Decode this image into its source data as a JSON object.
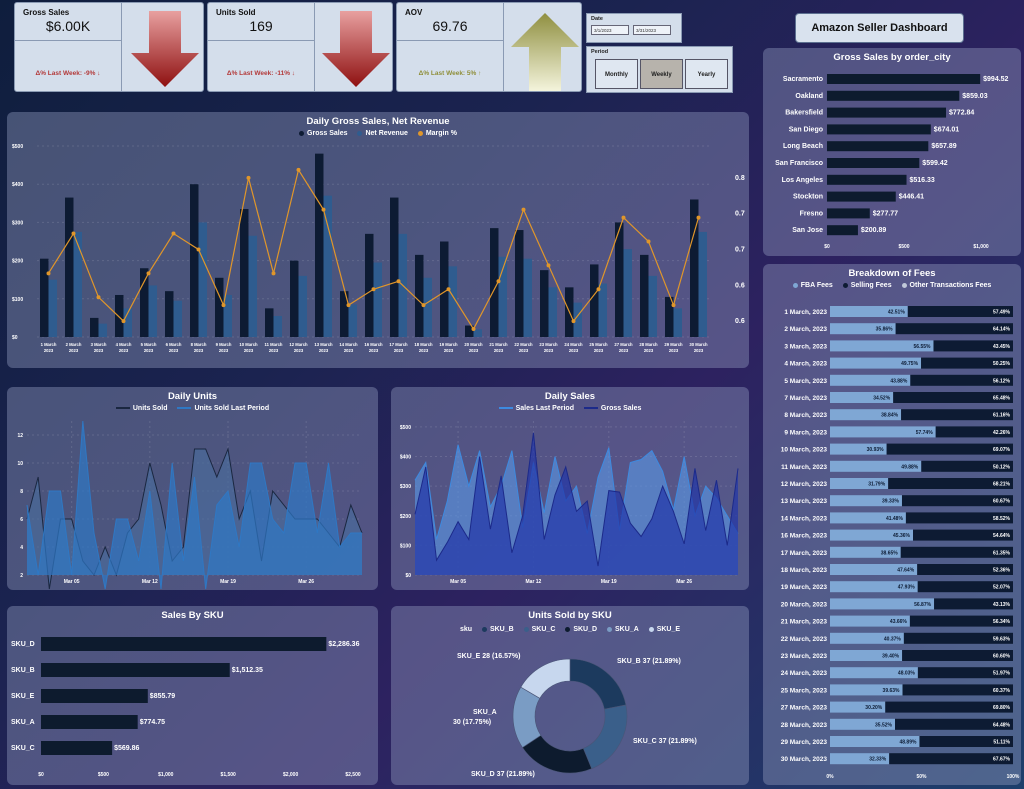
{
  "kpis": [
    {
      "title": "Gross Sales",
      "value": "$6.00K",
      "note": "Δ% Last Week: -9% ↓",
      "note_color": "#b33a3a",
      "trend": "down",
      "arrow_color": "#a11b1b"
    },
    {
      "title": "Units Sold",
      "value": "169",
      "note": "Δ% Last Week: -11% ↓",
      "note_color": "#b33a3a",
      "trend": "down",
      "arrow_color": "#a11b1b"
    },
    {
      "title": "AOV",
      "value": "69.76",
      "note": "Δ% Last Week: 5% ↑",
      "note_color": "#8f8f3a",
      "trend": "up",
      "arrow_color": "#9a9a4a"
    }
  ],
  "date_slicer": {
    "label": "Date",
    "start": "3/1/2023",
    "end": "3/31/2023"
  },
  "period_slicer": {
    "label": "Period",
    "options": [
      "Monthly",
      "Weekly",
      "Yearly"
    ],
    "selected": "Weekly"
  },
  "dashboard_title": "Amazon Seller Dashboard",
  "daily_chart": {
    "title": "Daily Gross Sales, Net Revenue",
    "legend": [
      "Gross Sales",
      "Net Revenue",
      "Margin %"
    ],
    "colors": {
      "gross": "#0d1b33",
      "net": "#2f5c8f",
      "margin": "#e0962a"
    },
    "y_left_ticks": [
      "$0",
      "$100",
      "$200",
      "$300",
      "$400",
      "$500"
    ],
    "y_right_ticks": [
      "0.6",
      "0.6",
      "0.7",
      "0.7",
      "0.8"
    ]
  },
  "daily_units": {
    "title": "Daily Units",
    "legend": [
      "Units Sold",
      "Units Sold Last Period"
    ],
    "y_ticks": [
      "2",
      "4",
      "6",
      "8",
      "10",
      "12"
    ],
    "x_ticks": [
      "Mar 05",
      "Mar 12",
      "Mar 19",
      "Mar 26"
    ]
  },
  "daily_sales": {
    "title": "Daily Sales",
    "legend": [
      "Sales Last Period",
      "Gross Sales"
    ],
    "y_ticks": [
      "$0",
      "$100",
      "$200",
      "$300",
      "$400",
      "$500"
    ],
    "x_ticks": [
      "Mar 05",
      "Mar 12",
      "Mar 19",
      "Mar 26"
    ]
  },
  "sales_by_sku": {
    "title": "Sales By SKU",
    "x_ticks": [
      "$0",
      "$500",
      "$1,000",
      "$1,500",
      "$2,000",
      "$2,500"
    ]
  },
  "units_by_sku": {
    "title": "Units Sold by SKU",
    "legend_title": "sku",
    "legend": [
      "SKU_B",
      "SKU_C",
      "SKU_D",
      "SKU_A",
      "SKU_E"
    ]
  },
  "gross_by_city": {
    "title": "Gross Sales by order_city",
    "x_ticks": [
      "$0",
      "$500",
      "$1,000"
    ]
  },
  "fees": {
    "title": "Breakdown of Fees",
    "legend": [
      "FBA Fees",
      "Selling Fees",
      "Other Transactions Fees"
    ],
    "x_ticks": [
      "0%",
      "50%",
      "100%"
    ],
    "colors": {
      "fba": "#7fa7d4",
      "selling": "#0d1b33"
    }
  },
  "chart_data": [
    {
      "type": "bar",
      "title": "Daily Gross Sales, Net Revenue",
      "categories": [
        "1 March, 2023",
        "2 March, 2023",
        "3 March, 2023",
        "4 March, 2023",
        "5 March, 2023",
        "6 March, 2023",
        "8 March, 2023",
        "9 March, 2023",
        "10 March, 2023",
        "11 March, 2023",
        "12 March, 2023",
        "13 March, 2023",
        "14 March, 2023",
        "16 March, 2023",
        "17 March, 2023",
        "18 March, 2023",
        "19 March, 2023",
        "20 March, 2023",
        "21 March, 2023",
        "22 March, 2023",
        "23 March, 2023",
        "24 March, 2023",
        "25 March, 2023",
        "27 March, 2023",
        "28 March, 2023",
        "29 March, 2023",
        "30 March, 2023"
      ],
      "series": [
        {
          "name": "Gross Sales",
          "values": [
            205,
            365,
            50,
            110,
            180,
            120,
            400,
            155,
            335,
            75,
            200,
            480,
            120,
            270,
            365,
            215,
            250,
            30,
            285,
            280,
            175,
            130,
            190,
            300,
            215,
            105,
            360
          ]
        },
        {
          "name": "Net Revenue",
          "values": [
            150,
            275,
            35,
            75,
            135,
            95,
            300,
            110,
            265,
            55,
            160,
            370,
            85,
            195,
            270,
            155,
            185,
            20,
            210,
            205,
            130,
            90,
            140,
            230,
            160,
            75,
            275
          ]
        },
        {
          "name": "Margin %",
          "values": [
            0.68,
            0.73,
            0.65,
            0.62,
            0.68,
            0.73,
            0.71,
            0.64,
            0.8,
            0.68,
            0.81,
            0.76,
            0.64,
            0.66,
            0.67,
            0.64,
            0.66,
            0.61,
            0.67,
            0.76,
            0.69,
            0.62,
            0.66,
            0.75,
            0.72,
            0.64,
            0.75
          ]
        }
      ],
      "ylim": [
        0,
        500
      ],
      "y2lim": [
        0.6,
        0.84
      ]
    },
    {
      "type": "area",
      "title": "Daily Units",
      "x": [
        "Mar 01",
        "Mar 02",
        "Mar 03",
        "Mar 04",
        "Mar 05",
        "Mar 06",
        "Mar 07",
        "Mar 08",
        "Mar 09",
        "Mar 10",
        "Mar 11",
        "Mar 12",
        "Mar 13",
        "Mar 14",
        "Mar 15",
        "Mar 16",
        "Mar 17",
        "Mar 18",
        "Mar 19",
        "Mar 20",
        "Mar 21",
        "Mar 22",
        "Mar 23",
        "Mar 24",
        "Mar 25",
        "Mar 26",
        "Mar 27",
        "Mar 28",
        "Mar 29",
        "Mar 30",
        "Mar 31"
      ],
      "series": [
        {
          "name": "Units Sold",
          "values": [
            6,
            9,
            1,
            6,
            6,
            3,
            2,
            4,
            2,
            5,
            6,
            10,
            7,
            3,
            4,
            11,
            11,
            9,
            11,
            6,
            8,
            3,
            8,
            7,
            6,
            6,
            6,
            5,
            4,
            7,
            5
          ]
        },
        {
          "name": "Units Sold Last Period",
          "values": [
            7,
            2,
            8,
            8,
            2,
            13,
            5,
            1,
            6,
            6,
            3,
            8,
            1,
            10,
            3,
            9,
            1,
            7,
            8,
            4,
            10,
            10,
            6,
            5,
            10,
            10,
            5,
            10,
            4,
            5,
            5
          ]
        }
      ],
      "ylim": [
        2,
        13
      ]
    },
    {
      "type": "area",
      "title": "Daily Sales",
      "x": [
        "Mar 01",
        "Mar 02",
        "Mar 03",
        "Mar 04",
        "Mar 05",
        "Mar 06",
        "Mar 07",
        "Mar 08",
        "Mar 09",
        "Mar 10",
        "Mar 11",
        "Mar 12",
        "Mar 13",
        "Mar 14",
        "Mar 15",
        "Mar 16",
        "Mar 17",
        "Mar 18",
        "Mar 19",
        "Mar 20",
        "Mar 21",
        "Mar 22",
        "Mar 23",
        "Mar 24",
        "Mar 25",
        "Mar 26",
        "Mar 27",
        "Mar 28",
        "Mar 29",
        "Mar 30",
        "Mar 31"
      ],
      "series": [
        {
          "name": "Sales Last Period",
          "values": [
            320,
            380,
            120,
            250,
            440,
            300,
            420,
            230,
            300,
            420,
            160,
            380,
            210,
            400,
            250,
            300,
            140,
            330,
            430,
            150,
            380,
            390,
            420,
            350,
            220,
            400,
            200,
            300,
            260,
            200,
            140
          ]
        },
        {
          "name": "Gross Sales",
          "values": [
            205,
            365,
            50,
            110,
            180,
            120,
            400,
            155,
            335,
            75,
            200,
            480,
            120,
            270,
            365,
            215,
            250,
            30,
            285,
            280,
            175,
            130,
            190,
            300,
            215,
            105,
            360,
            150,
            320,
            100,
            360
          ]
        }
      ],
      "ylim": [
        0,
        520
      ]
    },
    {
      "type": "bar",
      "title": "Sales By SKU",
      "categories": [
        "SKU_D",
        "SKU_B",
        "SKU_E",
        "SKU_A",
        "SKU_C"
      ],
      "values": [
        2286.36,
        1512.35,
        855.79,
        774.75,
        569.86
      ],
      "labels": [
        "$2,286.36",
        "$1,512.35",
        "$855.79",
        "$774.75",
        "$569.86"
      ],
      "xlim": [
        0,
        2500
      ]
    },
    {
      "type": "pie",
      "title": "Units Sold by SKU",
      "categories": [
        "SKU_B",
        "SKU_C",
        "SKU_D",
        "SKU_A",
        "SKU_E"
      ],
      "values": [
        37,
        37,
        37,
        30,
        28
      ],
      "labels": [
        "SKU_B 37 (21.89%)",
        "SKU_C 37 (21.89%)",
        "SKU_D 37 (21.89%)",
        "SKU_A 30 (17.75%)",
        "SKU_E 28 (16.57%)"
      ],
      "colors": [
        "#1c3a5e",
        "#3a5f8a",
        "#0d1b2e",
        "#7a9cc4",
        "#c7d7ee"
      ]
    },
    {
      "type": "bar",
      "title": "Gross Sales by order_city",
      "categories": [
        "Sacramento",
        "Oakland",
        "Bakersfield",
        "San Diego",
        "Long Beach",
        "San Francisco",
        "Los Angeles",
        "Stockton",
        "Fresno",
        "San Jose"
      ],
      "values": [
        994.52,
        859.03,
        772.84,
        674.01,
        657.89,
        599.42,
        516.33,
        446.41,
        277.77,
        200.89
      ],
      "labels": [
        "$994.52",
        "$859.03",
        "$772.84",
        "$674.01",
        "$657.89",
        "$599.42",
        "$516.33",
        "$446.41",
        "$277.77",
        "$200.89"
      ],
      "xlim": [
        0,
        1000
      ]
    },
    {
      "type": "bar",
      "title": "Breakdown of Fees",
      "categories": [
        "1 March, 2023",
        "2 March, 2023",
        "3 March, 2023",
        "4 March, 2023",
        "5 March, 2023",
        "7 March, 2023",
        "8 March, 2023",
        "9 March, 2023",
        "10 March, 2023",
        "11 March, 2023",
        "12 March, 2023",
        "13 March, 2023",
        "14 March, 2023",
        "16 March, 2023",
        "17 March, 2023",
        "18 March, 2023",
        "19 March, 2023",
        "20 March, 2023",
        "21 March, 2023",
        "22 March, 2023",
        "23 March, 2023",
        "24 March, 2023",
        "25 March, 2023",
        "27 March, 2023",
        "28 March, 2023",
        "29 March, 2023",
        "30 March, 2023"
      ],
      "series": [
        {
          "name": "FBA Fees",
          "values": [
            42.51,
            35.86,
            56.55,
            49.75,
            43.88,
            34.52,
            38.84,
            57.74,
            30.93,
            49.88,
            31.79,
            39.33,
            41.48,
            45.36,
            38.65,
            47.64,
            47.93,
            56.87,
            43.66,
            40.37,
            39.4,
            48.03,
            39.63,
            30.2,
            35.52,
            48.89,
            32.33
          ],
          "labels": [
            "42.51%",
            "35.86%",
            "56.55%",
            "49.75%",
            "43.88%",
            "34.52%",
            "38.84%",
            "57.74%",
            "30.93%",
            "49.88%",
            "31.79%",
            "39.33%",
            "41.48%",
            "45.36%",
            "38.65%",
            "47.64%",
            "47.93%",
            "56.87%",
            "43.66%",
            "40.37%",
            "39.40%",
            "48.03%",
            "39.63%",
            "30.20%",
            "35.52%",
            "48.89%",
            "32.33%"
          ]
        },
        {
          "name": "Selling Fees",
          "values": [
            57.49,
            64.14,
            43.45,
            50.25,
            56.12,
            65.48,
            61.16,
            42.26,
            69.07,
            50.12,
            68.21,
            60.67,
            58.52,
            54.64,
            61.35,
            52.36,
            52.07,
            43.13,
            56.34,
            59.63,
            60.6,
            51.97,
            60.37,
            69.8,
            64.48,
            51.11,
            67.67
          ],
          "labels": [
            "57.49%",
            "64.14%",
            "43.45%",
            "50.25%",
            "56.12%",
            "65.48%",
            "61.16%",
            "42.26%",
            "69.07%",
            "50.12%",
            "68.21%",
            "60.67%",
            "58.52%",
            "54.64%",
            "61.35%",
            "52.36%",
            "52.07%",
            "43.13%",
            "56.34%",
            "59.63%",
            "60.60%",
            "51.97%",
            "60.37%",
            "69.80%",
            "64.48%",
            "51.11%",
            "67.67%"
          ]
        }
      ],
      "xlim": [
        0,
        100
      ]
    }
  ]
}
